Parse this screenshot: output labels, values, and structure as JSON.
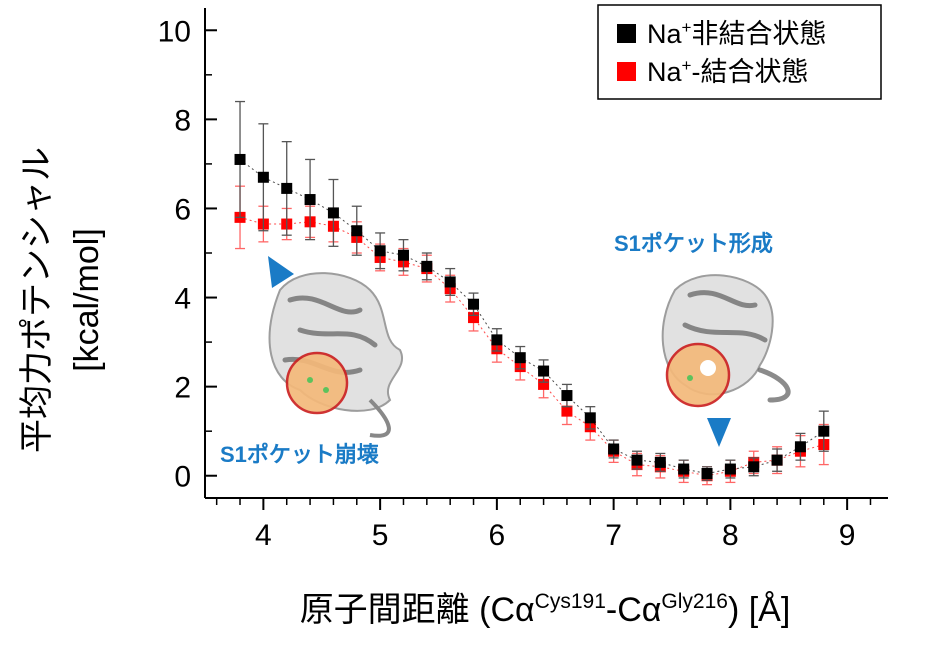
{
  "chart_data": {
    "type": "scatter",
    "xlabel": "原子間距離 (Cα",
    "xlabel_sup1": "Cys191",
    "xlabel_mid": "-Cα",
    "xlabel_sup2": "Gly216",
    "xlabel_end": ") [Å]",
    "ylabel_line1": "平均力ポテンシャル",
    "ylabel_line2": "[kcal/mol]",
    "xlim": [
      3.5,
      9.35
    ],
    "ylim": [
      -0.5,
      10.5
    ],
    "xticks": [
      4,
      5,
      6,
      7,
      8,
      9
    ],
    "xtick_labels": [
      "4",
      "5",
      "6",
      "7",
      "8",
      "9"
    ],
    "yticks": [
      0,
      2,
      4,
      6,
      8,
      10
    ],
    "ytick_labels": [
      "0",
      "2",
      "4",
      "6",
      "8",
      "10"
    ],
    "series": [
      {
        "name": "Na⁺非結合状態",
        "legend_prefix": "Na",
        "legend_sup": "+",
        "legend_suffix": "非結合状態",
        "color": "#000000",
        "errcolor": "#555555",
        "x": [
          3.8,
          4.0,
          4.2,
          4.4,
          4.6,
          4.8,
          5.0,
          5.2,
          5.4,
          5.6,
          5.8,
          6.0,
          6.2,
          6.4,
          6.6,
          6.8,
          7.0,
          7.2,
          7.4,
          7.6,
          7.8,
          8.0,
          8.2,
          8.4,
          8.6,
          8.8
        ],
        "y": [
          7.1,
          6.7,
          6.45,
          6.2,
          5.9,
          5.5,
          5.05,
          4.95,
          4.7,
          4.35,
          3.85,
          3.05,
          2.65,
          2.35,
          1.8,
          1.3,
          0.6,
          0.35,
          0.3,
          0.15,
          0.05,
          0.15,
          0.2,
          0.35,
          0.65,
          1.0
        ],
        "err": [
          1.3,
          1.2,
          1.05,
          0.9,
          0.75,
          0.55,
          0.4,
          0.35,
          0.3,
          0.3,
          0.25,
          0.25,
          0.25,
          0.25,
          0.25,
          0.25,
          0.2,
          0.2,
          0.2,
          0.2,
          0.15,
          0.2,
          0.2,
          0.25,
          0.3,
          0.45
        ]
      },
      {
        "name": "Na⁺-結合状態",
        "legend_prefix": "Na",
        "legend_sup": "+",
        "legend_suffix": "-結合状態",
        "color": "#ff0000",
        "errcolor": "#ff6666",
        "x": [
          3.8,
          4.0,
          4.2,
          4.4,
          4.6,
          4.8,
          5.0,
          5.2,
          5.4,
          5.6,
          5.8,
          6.0,
          6.2,
          6.4,
          6.6,
          6.8,
          7.0,
          7.2,
          7.4,
          7.6,
          7.8,
          8.0,
          8.2,
          8.4,
          8.6,
          8.8
        ],
        "y": [
          5.8,
          5.65,
          5.65,
          5.7,
          5.6,
          5.35,
          4.9,
          4.8,
          4.65,
          4.2,
          3.55,
          2.85,
          2.45,
          2.05,
          1.45,
          1.1,
          0.55,
          0.25,
          0.2,
          0.1,
          0.0,
          0.1,
          0.3,
          0.35,
          0.55,
          0.7
        ],
        "err": [
          0.7,
          0.4,
          0.35,
          0.35,
          0.35,
          0.35,
          0.3,
          0.3,
          0.3,
          0.3,
          0.3,
          0.3,
          0.3,
          0.3,
          0.3,
          0.3,
          0.25,
          0.25,
          0.25,
          0.25,
          0.2,
          0.25,
          0.25,
          0.3,
          0.35,
          0.45
        ]
      }
    ],
    "annotations": {
      "left_label": "S1ポケット崩壊",
      "right_label": "S1ポケット形成"
    }
  }
}
